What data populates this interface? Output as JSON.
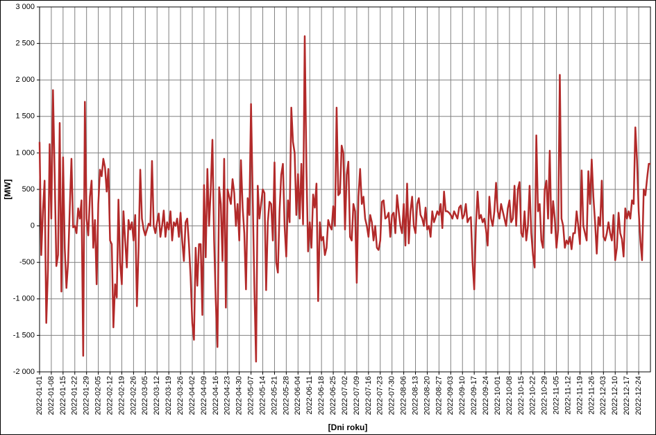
{
  "chart_data": {
    "type": "line",
    "y_label": "[MW]",
    "x_label": "[Dni roku]",
    "color": "#b22a2a",
    "grid": true,
    "ylim": [
      -2000,
      3000
    ],
    "yticks": [
      {
        "value": -2000,
        "label": "-2 000"
      },
      {
        "value": -1500,
        "label": "-1 500"
      },
      {
        "value": -1000,
        "label": "-1 000"
      },
      -500,
      0,
      500,
      {
        "value": 1000,
        "label": "1 000"
      },
      {
        "value": 1500,
        "label": "1 500"
      },
      {
        "value": 2000,
        "label": "2 000"
      },
      {
        "value": 2500,
        "label": "2 500"
      },
      {
        "value": 3000,
        "label": "3 000"
      }
    ],
    "categories": [
      "2022-01-01",
      null,
      null,
      null,
      null,
      null,
      null,
      "2022-01-08",
      null,
      null,
      null,
      null,
      null,
      null,
      "2022-01-15",
      null,
      null,
      null,
      null,
      null,
      null,
      "2022-01-22",
      null,
      null,
      null,
      null,
      null,
      null,
      "2022-01-29",
      null,
      null,
      null,
      null,
      null,
      null,
      "2022-02-05",
      null,
      null,
      null,
      null,
      null,
      null,
      "2022-02-12",
      null,
      null,
      null,
      null,
      null,
      null,
      "2022-02-19",
      null,
      null,
      null,
      null,
      null,
      null,
      "2022-02-26",
      null,
      null,
      null,
      null,
      null,
      null,
      "2022-03-05",
      null,
      null,
      null,
      null,
      null,
      null,
      "2022-03-12",
      null,
      null,
      null,
      null,
      null,
      null,
      "2022-03-19",
      null,
      null,
      null,
      null,
      null,
      null,
      "2022-03-26",
      null,
      null,
      null,
      null,
      null,
      null,
      "2022-04-02",
      null,
      null,
      null,
      null,
      null,
      null,
      "2022-04-09",
      null,
      null,
      null,
      null,
      null,
      null,
      "2022-04-16",
      null,
      null,
      null,
      null,
      null,
      null,
      "2022-04-23",
      null,
      null,
      null,
      null,
      null,
      null,
      "2022-04-30",
      null,
      null,
      null,
      null,
      null,
      null,
      "2022-05-07",
      null,
      null,
      null,
      null,
      null,
      null,
      "2022-05-14",
      null,
      null,
      null,
      null,
      null,
      null,
      "2022-05-21",
      null,
      null,
      null,
      null,
      null,
      null,
      "2022-05-28",
      null,
      null,
      null,
      null,
      null,
      null,
      "2022-06-04",
      null,
      null,
      null,
      null,
      null,
      null,
      "2022-06-11",
      null,
      null,
      null,
      null,
      null,
      null,
      "2022-06-18",
      null,
      null,
      null,
      null,
      null,
      null,
      "2022-06-25",
      null,
      null,
      null,
      null,
      null,
      null,
      "2022-07-02",
      null,
      null,
      null,
      null,
      null,
      null,
      "2022-07-09",
      null,
      null,
      null,
      null,
      null,
      null,
      "2022-07-16",
      null,
      null,
      null,
      null,
      null,
      null,
      "2022-07-23",
      null,
      null,
      null,
      null,
      null,
      null,
      "2022-07-30",
      null,
      null,
      null,
      null,
      null,
      null,
      "2022-08-06",
      null,
      null,
      null,
      null,
      null,
      null,
      "2022-08-13",
      null,
      null,
      null,
      null,
      null,
      null,
      "2022-08-20",
      null,
      null,
      null,
      null,
      null,
      null,
      "2022-08-27",
      null,
      null,
      null,
      null,
      null,
      null,
      "2022-09-03",
      null,
      null,
      null,
      null,
      null,
      null,
      "2022-09-10",
      null,
      null,
      null,
      null,
      null,
      null,
      "2022-09-17",
      null,
      null,
      null,
      null,
      null,
      null,
      "2022-09-24",
      null,
      null,
      null,
      null,
      null,
      null,
      "2022-10-01",
      null,
      null,
      null,
      null,
      null,
      null,
      "2022-10-08",
      null,
      null,
      null,
      null,
      null,
      null,
      "2022-10-15",
      null,
      null,
      null,
      null,
      null,
      null,
      "2022-10-22",
      null,
      null,
      null,
      null,
      null,
      null,
      "2022-10-29",
      null,
      null,
      null,
      null,
      null,
      null,
      "2022-11-05",
      null,
      null,
      null,
      null,
      null,
      null,
      "2022-11-12",
      null,
      null,
      null,
      null,
      null,
      null,
      "2022-11-19",
      null,
      null,
      null,
      null,
      null,
      null,
      "2022-11-26",
      null,
      null,
      null,
      null,
      null,
      null,
      "2022-12-03",
      null,
      null,
      null,
      null,
      null,
      null,
      "2022-12-10",
      null,
      null,
      null,
      null,
      null,
      null,
      "2022-12-17",
      null,
      null,
      null,
      null,
      null,
      null,
      "2022-12-24",
      null,
      null,
      null,
      null,
      null,
      null,
      null
    ],
    "values": [
      1150,
      -400,
      200,
      620,
      -1330,
      -600,
      1120,
      100,
      1860,
      700,
      -550,
      -400,
      1410,
      -900,
      940,
      -300,
      -850,
      -500,
      250,
      920,
      -20,
      0,
      -100,
      240,
      100,
      350,
      -1780,
      1700,
      100,
      -130,
      400,
      620,
      -300,
      80,
      -800,
      300,
      770,
      680,
      920,
      800,
      470,
      780,
      -200,
      -250,
      -1390,
      -800,
      -980,
      360,
      -500,
      -800,
      200,
      -200,
      -570,
      80,
      -50,
      50,
      -200,
      150,
      -1100,
      -300,
      770,
      100,
      -50,
      -130,
      -50,
      30,
      0,
      890,
      0,
      -100,
      50,
      170,
      -150,
      0,
      210,
      -150,
      50,
      -50,
      200,
      -200,
      50,
      0,
      100,
      -150,
      180,
      -200,
      -480,
      50,
      100,
      -250,
      -700,
      -1330,
      -1560,
      -300,
      -820,
      -250,
      -250,
      -1220,
      560,
      -430,
      780,
      0,
      500,
      1180,
      -200,
      -1030,
      -1660,
      530,
      300,
      -480,
      920,
      -1120,
      500,
      400,
      300,
      640,
      450,
      0,
      300,
      -200,
      900,
      250,
      -100,
      -870,
      380,
      150,
      1670,
      400,
      -850,
      -1860,
      550,
      100,
      300,
      500,
      450,
      -880,
      50,
      330,
      300,
      -200,
      870,
      -500,
      -640,
      200,
      700,
      850,
      0,
      -420,
      350,
      50,
      1620,
      1150,
      1000,
      150,
      710,
      100,
      850,
      20,
      2600,
      800,
      -350,
      50,
      -300,
      430,
      250,
      580,
      -1030,
      50,
      -200,
      -150,
      -400,
      -300,
      80,
      0,
      -50,
      270,
      0,
      1620,
      420,
      450,
      1100,
      1000,
      -50,
      700,
      880,
      -150,
      -200,
      300,
      200,
      -780,
      400,
      780,
      300,
      400,
      100,
      0,
      -150,
      150,
      50,
      -200,
      0,
      -300,
      -330,
      -200,
      330,
      350,
      100,
      120,
      180,
      -150,
      150,
      180,
      -100,
      420,
      200,
      0,
      -100,
      300,
      -270,
      580,
      -240,
      200,
      400,
      0,
      -100,
      300,
      380,
      150,
      100,
      0,
      250,
      -50,
      0,
      -150,
      200,
      50,
      120,
      200,
      150,
      300,
      -30,
      470,
      200,
      200,
      180,
      150,
      100,
      200,
      150,
      100,
      250,
      280,
      100,
      150,
      300,
      50,
      100,
      120,
      -500,
      -870,
      0,
      470,
      100,
      150,
      50,
      100,
      -50,
      -270,
      400,
      100,
      0,
      200,
      590,
      200,
      100,
      300,
      200,
      100,
      0,
      240,
      350,
      50,
      100,
      550,
      0,
      500,
      600,
      -100,
      -150,
      200,
      -200,
      0,
      550,
      -100,
      -400,
      -570,
      1240,
      200,
      300,
      -200,
      -300,
      500,
      620,
      100,
      1030,
      -100,
      340,
      100,
      -300,
      -50,
      2070,
      100,
      0,
      -300,
      -200,
      -250,
      -150,
      -320,
      -100,
      -100,
      200,
      0,
      -250,
      760,
      0,
      -100,
      -200,
      750,
      300,
      910,
      400,
      50,
      -380,
      120,
      0,
      620,
      -150,
      -200,
      -100,
      50,
      -100,
      -200,
      150,
      -470,
      -300,
      180,
      -100,
      -180,
      -420,
      240,
      100,
      200,
      100,
      350,
      300,
      1350,
      900,
      200,
      -200,
      -470,
      500,
      420,
      650,
      850,
      850
    ]
  }
}
